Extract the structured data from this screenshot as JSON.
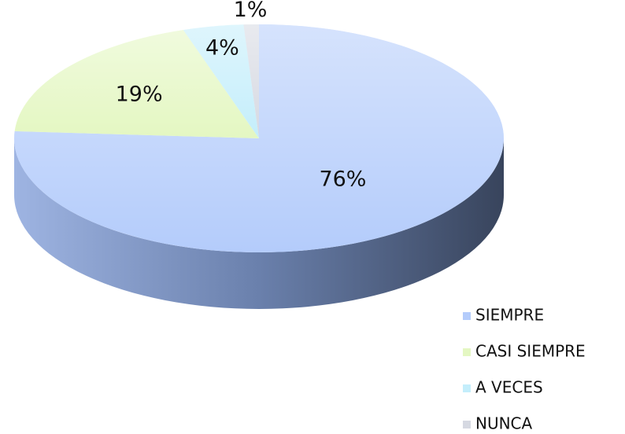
{
  "chart_data": {
    "type": "pie",
    "categories": [
      "SIEMPRE",
      "CASI SIEMPRE",
      "A VECES",
      "NUNCA"
    ],
    "values": [
      76,
      19,
      4,
      1
    ],
    "value_labels": [
      "76%",
      "19%",
      "4%",
      "1%"
    ],
    "colors": [
      "#b4ccfb",
      "#e4f7c2",
      "#c4eefb",
      "#d6d9e2"
    ],
    "legend": "bottom-right"
  }
}
